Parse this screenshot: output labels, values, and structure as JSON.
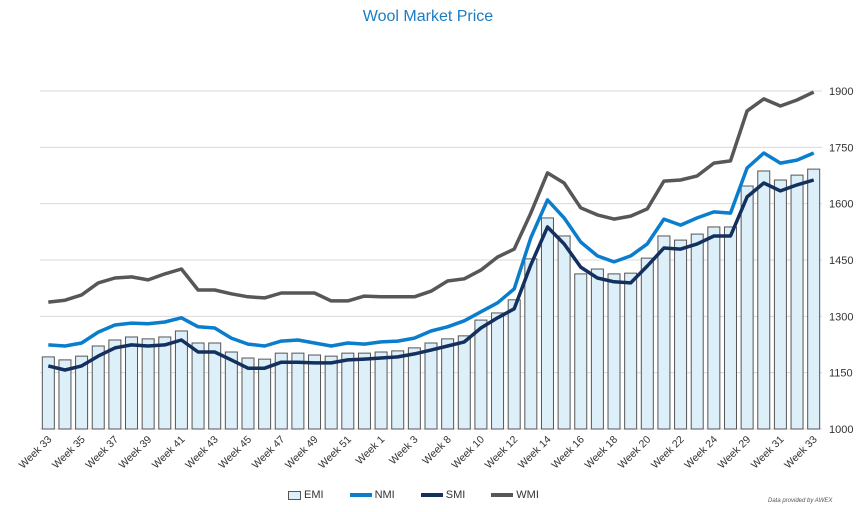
{
  "chart_data": {
    "type": "bar+line",
    "title": "Wool Market Price",
    "ylim": [
      1000,
      1900
    ],
    "yticks": [
      1000,
      1150,
      1300,
      1450,
      1600,
      1750,
      1900
    ],
    "y_axis_side": "right",
    "grid": true,
    "legend_placement": "bottom",
    "categories": [
      "Week 33",
      "",
      "Week 35",
      "",
      "Week 37",
      "",
      "Week 39",
      "",
      "Week 41",
      "",
      "Week 43",
      "",
      "Week 45",
      "",
      "Week 47",
      "",
      "Week 49",
      "",
      "Week 51",
      "",
      "Week 1",
      "",
      "Week 3",
      "",
      "Week 8",
      "",
      "Week 10",
      "",
      "Week 12",
      "",
      "Week 14",
      "",
      "Week 16",
      "",
      "Week 18",
      "",
      "Week 20",
      "",
      "Week 22",
      "",
      "Week 24",
      "",
      "Week 29",
      "",
      "Week 31",
      "",
      "Week 33"
    ],
    "series": [
      {
        "name": "EMI",
        "kind": "bar",
        "color": "#ddf0fa",
        "values": [
          1192,
          1184,
          1194,
          1221,
          1237,
          1245,
          1240,
          1245,
          1261,
          1229,
          1229,
          1205,
          1189,
          1186,
          1202,
          1202,
          1197,
          1194,
          1202,
          1202,
          1205,
          1208,
          1216,
          1229,
          1240,
          1248,
          1290,
          1309,
          1344,
          1453,
          1562,
          1514,
          1413,
          1426,
          1413,
          1415,
          1455,
          1514,
          1503,
          1519,
          1538,
          1538,
          1647,
          1687,
          1663,
          1676,
          1692
        ]
      },
      {
        "name": "NMI",
        "kind": "line",
        "color": "#0a7dcc",
        "values": [
          1224,
          1221,
          1229,
          1258,
          1277,
          1282,
          1280,
          1285,
          1296,
          1272,
          1269,
          1242,
          1226,
          1221,
          1234,
          1237,
          1229,
          1221,
          1229,
          1226,
          1232,
          1234,
          1242,
          1261,
          1272,
          1288,
          1312,
          1336,
          1373,
          1509,
          1610,
          1562,
          1498,
          1461,
          1445,
          1461,
          1493,
          1559,
          1543,
          1562,
          1578,
          1575,
          1695,
          1735,
          1708,
          1716,
          1735
        ]
      },
      {
        "name": "SMI",
        "kind": "line",
        "color": "#13305e",
        "values": [
          1168,
          1157,
          1168,
          1194,
          1216,
          1224,
          1221,
          1224,
          1237,
          1205,
          1205,
          1184,
          1162,
          1162,
          1178,
          1178,
          1176,
          1176,
          1184,
          1186,
          1189,
          1192,
          1200,
          1210,
          1221,
          1232,
          1269,
          1296,
          1320,
          1437,
          1538,
          1493,
          1431,
          1402,
          1392,
          1389,
          1434,
          1482,
          1479,
          1493,
          1514,
          1514,
          1618,
          1655,
          1634,
          1650,
          1663
        ]
      },
      {
        "name": "WMI",
        "kind": "line",
        "color": "#575757",
        "values": [
          1338,
          1343,
          1357,
          1389,
          1402,
          1405,
          1397,
          1413,
          1426,
          1370,
          1370,
          1360,
          1352,
          1349,
          1362,
          1362,
          1362,
          1341,
          1341,
          1354,
          1352,
          1352,
          1352,
          1367,
          1394,
          1400,
          1423,
          1458,
          1479,
          1575,
          1682,
          1655,
          1589,
          1570,
          1559,
          1567,
          1586,
          1660,
          1663,
          1674,
          1708,
          1714,
          1847,
          1879,
          1860,
          1876,
          1897
        ]
      }
    ],
    "credit": "Data provided by AWEX"
  }
}
